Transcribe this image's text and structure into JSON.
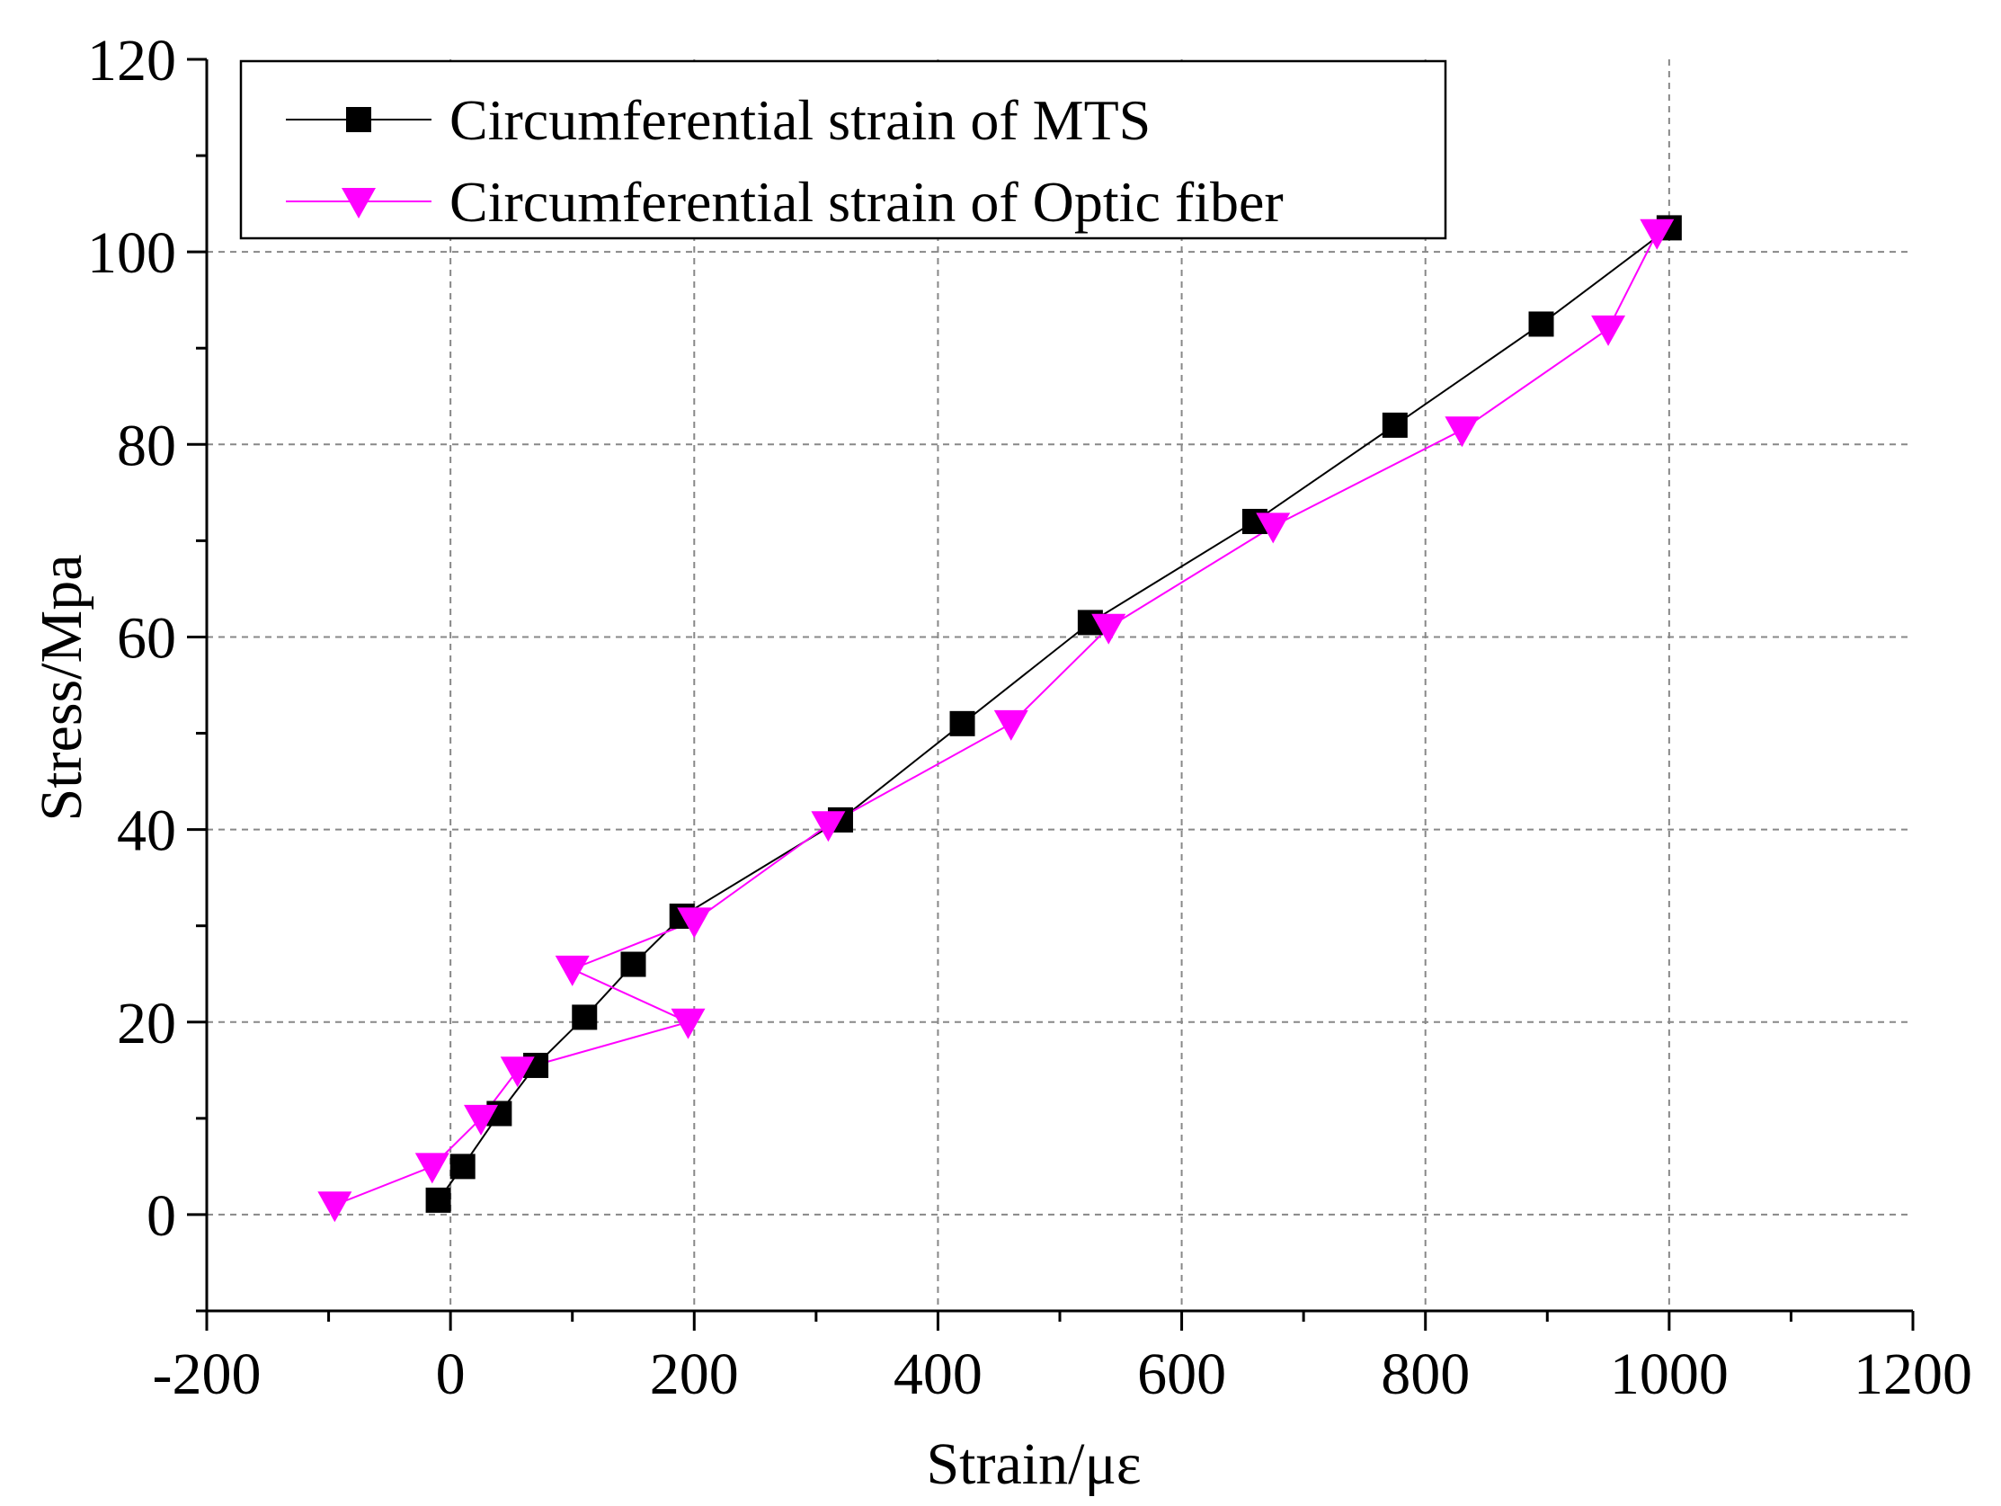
{
  "chart_data": {
    "type": "line",
    "title": "",
    "xlabel": "Strain/με",
    "ylabel": "Stress/Mpa",
    "xlim": [
      -200,
      1200
    ],
    "ylim": [
      -10,
      120
    ],
    "xticks": [
      -200,
      0,
      200,
      400,
      600,
      800,
      1000,
      1200
    ],
    "yticks": [
      0,
      20,
      40,
      60,
      80,
      100,
      120
    ],
    "grid": true,
    "legend_position": "top-left",
    "series": [
      {
        "name": "Circumferential strain of MTS",
        "color": "#000000",
        "marker": "square",
        "x": [
          -10,
          10,
          40,
          70,
          110,
          150,
          190,
          320,
          420,
          525,
          660,
          775,
          895,
          1000
        ],
        "y": [
          1.5,
          5,
          10.5,
          15.5,
          20.5,
          26,
          31,
          41,
          51,
          61.5,
          72,
          82,
          92.5,
          102.5
        ]
      },
      {
        "name": "Circumferential strain of Optic fiber",
        "color": "#ff00ff",
        "marker": "triangle-down",
        "x": [
          -95,
          -15,
          25,
          55,
          195,
          100,
          200,
          310,
          460,
          540,
          675,
          830,
          950,
          990
        ],
        "y": [
          1,
          5,
          10,
          15,
          20,
          25.5,
          30.5,
          40.5,
          51,
          61,
          71.5,
          81.5,
          92,
          102
        ]
      }
    ]
  }
}
